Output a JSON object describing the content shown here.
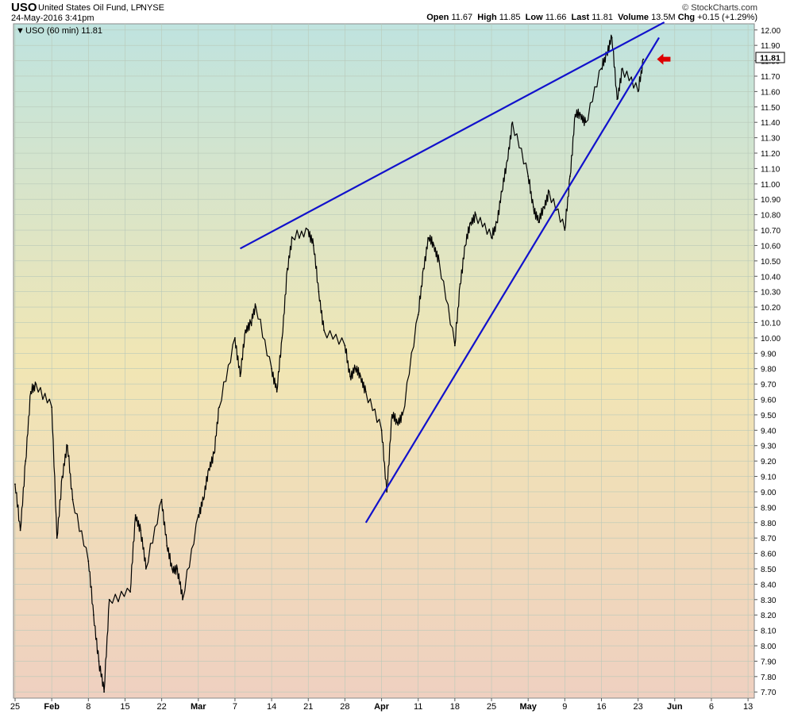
{
  "header": {
    "symbol": "USO",
    "name": "United States Oil Fund, LP",
    "exchange": "NYSE",
    "date": "24-May-2016 3:41pm",
    "brand": "© StockCharts.com",
    "open_label": "Open",
    "open": "11.67",
    "high_label": "High",
    "high": "11.85",
    "low_label": "Low",
    "low": "11.66",
    "last_label": "Last",
    "last": "11.81",
    "volume_label": "Volume",
    "volume": "13.5M",
    "chg_label": "Chg",
    "chg": "+0.15 (+1.29%)"
  },
  "legend": "USO (60 min) 11.81",
  "last_tag": "11.81",
  "colors": {
    "trendline": "#1111cc",
    "price": "#000000",
    "arrow": "#dd0000",
    "grid": "#b9c9b9"
  },
  "chart_data": {
    "type": "line",
    "interval": "60 min",
    "x_axis": {
      "tick_labels": [
        "25",
        "Feb",
        "8",
        "15",
        "22",
        "Mar",
        "7",
        "14",
        "21",
        "28",
        "Apr",
        "11",
        "18",
        "25",
        "May",
        "9",
        "16",
        "23",
        "Jun",
        "6",
        "13"
      ],
      "tick_dates": [
        "2016-01-25",
        "2016-02-01",
        "2016-02-08",
        "2016-02-15",
        "2016-02-22",
        "2016-02-29",
        "2016-03-07",
        "2016-03-14",
        "2016-03-21",
        "2016-03-28",
        "2016-04-04",
        "2016-04-11",
        "2016-04-18",
        "2016-04-25",
        "2016-05-02",
        "2016-05-09",
        "2016-05-16",
        "2016-05-23",
        "2016-05-30",
        "2016-06-06",
        "2016-06-13"
      ]
    },
    "y_axis": {
      "ylim": [
        7.66,
        12.04
      ],
      "tick_labels": [
        "7.70",
        "7.80",
        "7.90",
        "8.00",
        "8.10",
        "8.20",
        "8.30",
        "8.40",
        "8.50",
        "8.60",
        "8.70",
        "8.80",
        "8.90",
        "9.00",
        "9.10",
        "9.20",
        "9.30",
        "9.40",
        "9.50",
        "9.60",
        "9.70",
        "9.80",
        "9.90",
        "10.00",
        "10.10",
        "10.20",
        "10.30",
        "10.40",
        "10.50",
        "10.60",
        "10.70",
        "10.80",
        "10.90",
        "11.00",
        "11.10",
        "11.20",
        "11.30",
        "11.40",
        "11.50",
        "11.60",
        "11.70",
        "11.80",
        "11.90",
        "12.00"
      ],
      "position": "right"
    },
    "grid": true,
    "series": [
      {
        "values": [
          [
            "2016-01-25",
            9.05
          ],
          [
            "2016-01-26",
            8.75
          ],
          [
            "2016-01-27",
            9.2
          ],
          [
            "2016-01-28",
            9.65
          ],
          [
            "2016-01-29",
            9.7
          ],
          [
            "2016-02-01",
            9.55
          ],
          [
            "2016-02-02",
            8.7
          ],
          [
            "2016-02-03",
            9.1
          ],
          [
            "2016-02-04",
            9.3
          ],
          [
            "2016-02-05",
            8.95
          ],
          [
            "2016-02-08",
            8.55
          ],
          [
            "2016-02-09",
            8.2
          ],
          [
            "2016-02-10",
            7.9
          ],
          [
            "2016-02-11",
            7.7
          ],
          [
            "2016-02-12",
            8.3
          ],
          [
            "2016-02-16",
            8.35
          ],
          [
            "2016-02-17",
            8.85
          ],
          [
            "2016-02-18",
            8.75
          ],
          [
            "2016-02-19",
            8.5
          ],
          [
            "2016-02-22",
            8.95
          ],
          [
            "2016-02-23",
            8.65
          ],
          [
            "2016-02-24",
            8.5
          ],
          [
            "2016-02-25",
            8.5
          ],
          [
            "2016-02-26",
            8.3
          ],
          [
            "2016-02-29",
            8.85
          ],
          [
            "2016-03-01",
            8.95
          ],
          [
            "2016-03-02",
            9.15
          ],
          [
            "2016-03-03",
            9.25
          ],
          [
            "2016-03-04",
            9.55
          ],
          [
            "2016-03-07",
            10.0
          ],
          [
            "2016-03-08",
            9.75
          ],
          [
            "2016-03-09",
            10.05
          ],
          [
            "2016-03-10",
            10.1
          ],
          [
            "2016-03-11",
            10.2
          ],
          [
            "2016-03-14",
            9.8
          ],
          [
            "2016-03-15",
            9.65
          ],
          [
            "2016-03-16",
            10.0
          ],
          [
            "2016-03-17",
            10.45
          ],
          [
            "2016-03-18",
            10.65
          ],
          [
            "2016-03-21",
            10.7
          ],
          [
            "2016-03-22",
            10.6
          ],
          [
            "2016-03-23",
            10.3
          ],
          [
            "2016-03-24",
            10.05
          ],
          [
            "2016-03-28",
            9.95
          ],
          [
            "2016-03-29",
            9.75
          ],
          [
            "2016-03-30",
            9.8
          ],
          [
            "2016-03-31",
            9.75
          ],
          [
            "2016-04-01",
            9.65
          ],
          [
            "2016-04-04",
            9.4
          ],
          [
            "2016-04-05",
            9.0
          ],
          [
            "2016-04-06",
            9.5
          ],
          [
            "2016-04-07",
            9.45
          ],
          [
            "2016-04-08",
            9.5
          ],
          [
            "2016-04-11",
            10.15
          ],
          [
            "2016-04-12",
            10.45
          ],
          [
            "2016-04-13",
            10.65
          ],
          [
            "2016-04-14",
            10.6
          ],
          [
            "2016-04-15",
            10.5
          ],
          [
            "2016-04-18",
            9.95
          ],
          [
            "2016-04-19",
            10.35
          ],
          [
            "2016-04-20",
            10.6
          ],
          [
            "2016-04-21",
            10.75
          ],
          [
            "2016-04-22",
            10.8
          ],
          [
            "2016-04-25",
            10.65
          ],
          [
            "2016-04-26",
            10.75
          ],
          [
            "2016-04-27",
            10.95
          ],
          [
            "2016-04-28",
            11.15
          ],
          [
            "2016-04-29",
            11.4
          ],
          [
            "2016-05-02",
            11.05
          ],
          [
            "2016-05-03",
            10.85
          ],
          [
            "2016-05-04",
            10.75
          ],
          [
            "2016-05-05",
            10.85
          ],
          [
            "2016-05-06",
            10.95
          ],
          [
            "2016-05-09",
            10.7
          ],
          [
            "2016-05-10",
            11.05
          ],
          [
            "2016-05-11",
            11.45
          ],
          [
            "2016-05-12",
            11.45
          ],
          [
            "2016-05-13",
            11.4
          ],
          [
            "2016-05-16",
            11.75
          ],
          [
            "2016-05-17",
            11.85
          ],
          [
            "2016-05-18",
            11.95
          ],
          [
            "2016-05-19",
            11.55
          ],
          [
            "2016-05-20",
            11.75
          ],
          [
            "2016-05-23",
            11.6
          ],
          [
            "2016-05-24",
            11.81
          ]
        ]
      }
    ],
    "annotations": [
      {
        "type": "trendline",
        "from": [
          "2016-03-08",
          10.58
        ],
        "to": [
          "2016-05-28",
          12.05
        ]
      },
      {
        "type": "trendline",
        "from": [
          "2016-04-01",
          8.8
        ],
        "to": [
          "2016-05-27",
          11.95
        ]
      },
      {
        "type": "arrow",
        "at": [
          "2016-05-26",
          11.81
        ],
        "direction": "left"
      }
    ]
  }
}
